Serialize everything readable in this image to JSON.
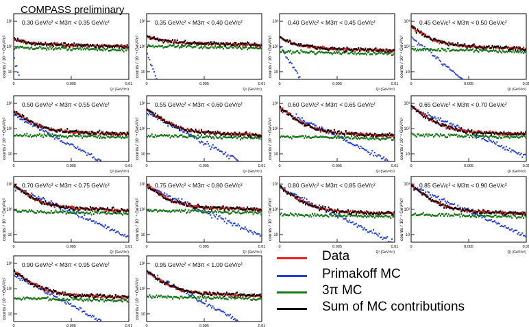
{
  "header": {
    "label": "COMPASS preliminary"
  },
  "colors": {
    "data": "#e8201c",
    "primakoff": "#1f3fe0",
    "threepi": "#147814",
    "sum": "#000000"
  },
  "legend": [
    {
      "name": "Data",
      "color": "#e8201c"
    },
    {
      "name": "Primakoff MC",
      "color": "#1f3fe0"
    },
    {
      "name": "3π MC",
      "color": "#147814"
    },
    {
      "name": "Sum of MC contributions",
      "color": "#000000"
    }
  ],
  "chart_data": {
    "type": "line",
    "xlabel": "Q² (GeV²/c²)",
    "ylabel": "counts / 10⁻⁴ GeV²/c²",
    "xlim": [
      0,
      0.01
    ],
    "x_ticks": [
      "0",
      "0.005",
      "0.01"
    ],
    "y_scale": "log",
    "ylim": [
      5,
      2000
    ],
    "y_ticks": [
      "10",
      "10²",
      "10³"
    ],
    "panels": [
      {
        "title": "0.30 GeV/c² < M3π < 0.35 GeV/c²",
        "plateau": 130,
        "peak": 190,
        "prim_start": 40,
        "prim_decay": 0.00025
      },
      {
        "title": "0.35 GeV/c² < M3π < 0.40 GeV/c²",
        "plateau": 150,
        "peak": 260,
        "prim_start": 60,
        "prim_decay": 0.00035
      },
      {
        "title": "0.40 GeV/c² < M3π < 0.45 GeV/c²",
        "plateau": 90,
        "peak": 230,
        "prim_start": 110,
        "prim_decay": 0.0006
      },
      {
        "title": "0.45 GeV/c² < M3π < 0.50 GeV/c²",
        "plateau": 110,
        "peak": 600,
        "prim_start": 220,
        "prim_decay": 0.0012
      },
      {
        "title": "0.50 GeV/c² < M3π < 0.55 GeV/c²",
        "plateau": 80,
        "peak": 500,
        "prim_start": 350,
        "prim_decay": 0.0018
      },
      {
        "title": "0.55 GeV/c² < M3π < 0.60 GeV/c²",
        "plateau": 75,
        "peak": 600,
        "prim_start": 450,
        "prim_decay": 0.0018
      },
      {
        "title": "0.60 GeV/c² < M3π < 0.65 GeV/c²",
        "plateau": 70,
        "peak": 700,
        "prim_start": 600,
        "prim_decay": 0.002
      },
      {
        "title": "0.65 GeV/c² < M3π < 0.70 GeV/c²",
        "plateau": 80,
        "peak": 800,
        "prim_start": 700,
        "prim_decay": 0.0022
      },
      {
        "title": "0.70 GeV/c² < M3π < 0.75 GeV/c²",
        "plateau": 120,
        "peak": 900,
        "prim_start": 750,
        "prim_decay": 0.0022
      },
      {
        "title": "0.75 GeV/c² < M3π < 0.80 GeV/c²",
        "plateau": 130,
        "peak": 900,
        "prim_start": 800,
        "prim_decay": 0.0022
      },
      {
        "title": "0.80 GeV/c² < M3π < 0.85 GeV/c²",
        "plateau": 90,
        "peak": 800,
        "prim_start": 700,
        "prim_decay": 0.002
      },
      {
        "title": "0.85 GeV/c² < M3π < 0.90 GeV/c²",
        "plateau": 90,
        "peak": 900,
        "prim_start": 800,
        "prim_decay": 0.0022
      },
      {
        "title": "0.90 GeV/c² < M3π < 0.95 GeV/c²",
        "plateau": 60,
        "peak": 500,
        "prim_start": 350,
        "prim_decay": 0.0018
      },
      {
        "title": "0.95 GeV/c² < M3π < 1.00 GeV/c²",
        "plateau": 70,
        "peak": 500,
        "prim_start": 450,
        "prim_decay": 0.0018
      }
    ]
  }
}
